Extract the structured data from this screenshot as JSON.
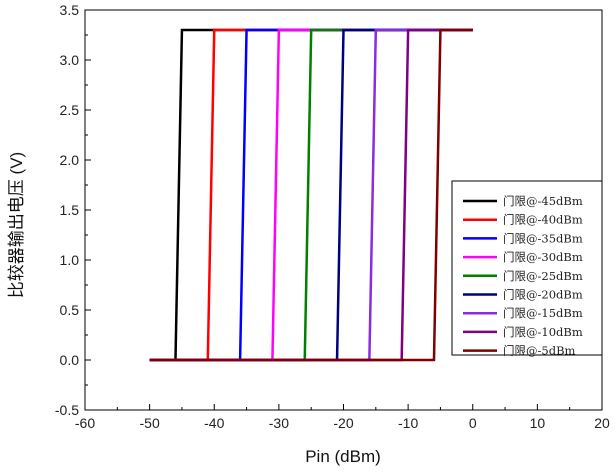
{
  "chart_data": {
    "type": "line",
    "xlabel": "Pin (dBm)",
    "ylabel": "比较器输出电压 (V)",
    "xlim": [
      -60,
      20
    ],
    "ylim": [
      -0.5,
      3.5
    ],
    "xticks": [
      -60,
      -50,
      -40,
      -30,
      -20,
      -10,
      0,
      10,
      20
    ],
    "yticks": [
      -0.5,
      0.0,
      0.5,
      1.0,
      1.5,
      2.0,
      2.5,
      3.0,
      3.5
    ],
    "xtick_labels": [
      "-60",
      "-50",
      "-40",
      "-30",
      "-20",
      "-10",
      "0",
      "10",
      "20"
    ],
    "ytick_labels": [
      "-0.5",
      "0.0",
      "0.5",
      "1.0",
      "1.5",
      "2.0",
      "2.5",
      "3.0",
      "3.5"
    ],
    "legend_placement": "center-right",
    "grid": false,
    "series": [
      {
        "name": "门限@-45dBm",
        "color": "#000000",
        "x": [
          -50,
          -46,
          -45,
          0
        ],
        "y": [
          0,
          0,
          3.3,
          3.3
        ]
      },
      {
        "name": "门限@-40dBm",
        "color": "#ff0000",
        "x": [
          -50,
          -41,
          -40,
          0
        ],
        "y": [
          0,
          0,
          3.3,
          3.3
        ]
      },
      {
        "name": "门限@-35dBm",
        "color": "#0000ff",
        "x": [
          -50,
          -36,
          -35,
          0
        ],
        "y": [
          0,
          0,
          3.3,
          3.3
        ]
      },
      {
        "name": "门限@-30dBm",
        "color": "#ff00ff",
        "x": [
          -50,
          -31,
          -30,
          0
        ],
        "y": [
          0,
          0,
          3.3,
          3.3
        ]
      },
      {
        "name": "门限@-25dBm",
        "color": "#008000",
        "x": [
          -50,
          -26,
          -25,
          0
        ],
        "y": [
          0,
          0,
          3.3,
          3.3
        ]
      },
      {
        "name": "门限@-20dBm",
        "color": "#000080",
        "x": [
          -50,
          -21,
          -20,
          0
        ],
        "y": [
          0,
          0,
          3.3,
          3.3
        ]
      },
      {
        "name": "门限@-15dBm",
        "color": "#8a2be2",
        "x": [
          -50,
          -16,
          -15,
          0
        ],
        "y": [
          0,
          0,
          3.3,
          3.3
        ]
      },
      {
        "name": "门限@-10dBm",
        "color": "#800080",
        "x": [
          -50,
          -11,
          -10,
          0
        ],
        "y": [
          0,
          0,
          3.3,
          3.3
        ]
      },
      {
        "name": "门限@-5dBm",
        "color": "#800000",
        "x": [
          -50,
          -6,
          -5,
          0
        ],
        "y": [
          0,
          0,
          3.3,
          3.3
        ]
      }
    ]
  }
}
